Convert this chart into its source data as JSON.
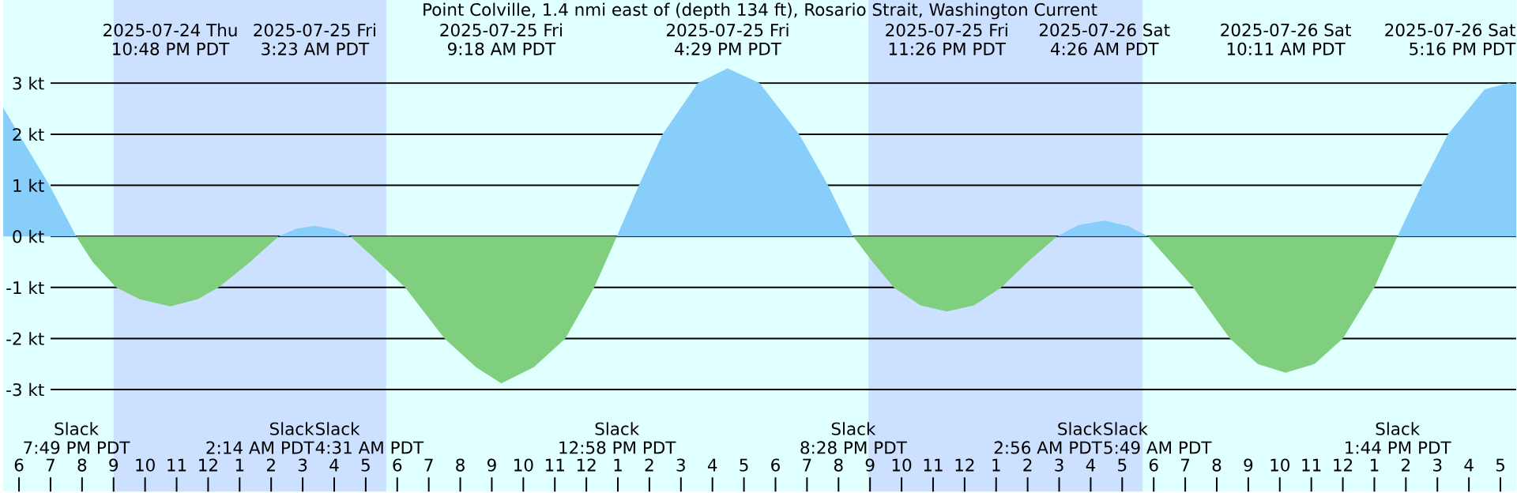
{
  "chart_data": {
    "type": "area",
    "title": "Point Colville, 1.4 nmi east of (depth 134 ft), Rosario Strait, Washington Current",
    "xlim": [
      "2025-07-24T17:30",
      "2025-07-26T17:30"
    ],
    "ylim": [
      -5.0,
      4.63
    ],
    "xticks": [
      {
        "value": "2025-07-24T18:00",
        "label": "6"
      },
      {
        "value": "2025-07-24T19:00",
        "label": "7"
      },
      {
        "value": "2025-07-24T20:00",
        "label": "8"
      },
      {
        "value": "2025-07-24T21:00",
        "label": "9"
      },
      {
        "value": "2025-07-24T22:00",
        "label": "10"
      },
      {
        "value": "2025-07-24T23:00",
        "label": "11"
      },
      {
        "value": "2025-07-25T00:00",
        "label": "12"
      },
      {
        "value": "2025-07-25T01:00",
        "label": "1"
      },
      {
        "value": "2025-07-25T02:00",
        "label": "2"
      },
      {
        "value": "2025-07-25T03:00",
        "label": "3"
      },
      {
        "value": "2025-07-25T04:00",
        "label": "4"
      },
      {
        "value": "2025-07-25T05:00",
        "label": "5"
      },
      {
        "value": "2025-07-25T06:00",
        "label": "6"
      },
      {
        "value": "2025-07-25T07:00",
        "label": "7"
      },
      {
        "value": "2025-07-25T08:00",
        "label": "8"
      },
      {
        "value": "2025-07-25T09:00",
        "label": "9"
      },
      {
        "value": "2025-07-25T10:00",
        "label": "10"
      },
      {
        "value": "2025-07-25T11:00",
        "label": "11"
      },
      {
        "value": "2025-07-25T12:00",
        "label": "12"
      },
      {
        "value": "2025-07-25T13:00",
        "label": "1"
      },
      {
        "value": "2025-07-25T14:00",
        "label": "2"
      },
      {
        "value": "2025-07-25T15:00",
        "label": "3"
      },
      {
        "value": "2025-07-25T16:00",
        "label": "4"
      },
      {
        "value": "2025-07-25T17:00",
        "label": "5"
      },
      {
        "value": "2025-07-25T18:00",
        "label": "6"
      },
      {
        "value": "2025-07-25T19:00",
        "label": "7"
      },
      {
        "value": "2025-07-25T20:00",
        "label": "8"
      },
      {
        "value": "2025-07-25T21:00",
        "label": "9"
      },
      {
        "value": "2025-07-25T22:00",
        "label": "10"
      },
      {
        "value": "2025-07-25T23:00",
        "label": "11"
      },
      {
        "value": "2025-07-26T00:00",
        "label": "12"
      },
      {
        "value": "2025-07-26T01:00",
        "label": "1"
      },
      {
        "value": "2025-07-26T02:00",
        "label": "2"
      },
      {
        "value": "2025-07-26T03:00",
        "label": "3"
      },
      {
        "value": "2025-07-26T04:00",
        "label": "4"
      },
      {
        "value": "2025-07-26T05:00",
        "label": "5"
      },
      {
        "value": "2025-07-26T06:00",
        "label": "6"
      },
      {
        "value": "2025-07-26T07:00",
        "label": "7"
      },
      {
        "value": "2025-07-26T08:00",
        "label": "8"
      },
      {
        "value": "2025-07-26T09:00",
        "label": "9"
      },
      {
        "value": "2025-07-26T10:00",
        "label": "10"
      },
      {
        "value": "2025-07-26T11:00",
        "label": "11"
      },
      {
        "value": "2025-07-26T12:00",
        "label": "12"
      },
      {
        "value": "2025-07-26T13:00",
        "label": "1"
      },
      {
        "value": "2025-07-26T14:00",
        "label": "2"
      },
      {
        "value": "2025-07-26T15:00",
        "label": "3"
      },
      {
        "value": "2025-07-26T16:00",
        "label": "4"
      },
      {
        "value": "2025-07-26T17:00",
        "label": "5"
      }
    ],
    "yticks": [
      {
        "value": 3,
        "label": "3 kt"
      },
      {
        "value": 2,
        "label": "2 kt"
      },
      {
        "value": 1,
        "label": "1 kt"
      },
      {
        "value": 0,
        "label": "0 kt"
      },
      {
        "value": -1,
        "label": "-1 kt"
      },
      {
        "value": -2,
        "label": "-2 kt"
      },
      {
        "value": -3,
        "label": "-3 kt"
      }
    ],
    "grid": "y",
    "bands": [
      {
        "axis": "x",
        "from": "2025-07-24T21:00",
        "to": "2025-07-25T05:39",
        "color": "#cce0ff"
      },
      {
        "axis": "x",
        "from": "2025-07-25T20:57",
        "to": "2025-07-26T05:39",
        "color": "#cce0ff"
      }
    ],
    "series": [
      {
        "color": "#87cefa",
        "x": [
          "2025-07-24T17:30",
          "2025-07-24T18:00",
          "2025-07-24T18:58",
          "2025-07-24T19:49",
          "2025-07-24T23:00",
          "2025-07-25T02:14",
          "2025-07-25T02:48",
          "2025-07-25T03:23",
          "2025-07-25T04:00",
          "2025-07-25T04:31",
          "2025-07-25T09:00",
          "2025-07-25T12:58",
          "2025-07-25T13:40",
          "2025-07-25T14:25",
          "2025-07-25T15:32",
          "2025-07-25T16:29",
          "2025-07-25T17:30",
          "2025-07-25T18:45",
          "2025-07-25T19:40",
          "2025-07-25T20:28",
          "2025-07-25T23:00",
          "2025-07-26T02:56",
          "2025-07-26T03:36",
          "2025-07-26T04:26",
          "2025-07-26T05:12",
          "2025-07-26T05:49",
          "2025-07-26T10:00",
          "2025-07-26T13:44",
          "2025-07-26T14:30",
          "2025-07-26T15:20",
          "2025-07-26T16:30",
          "2025-07-26T17:16",
          "2025-07-26T17:30"
        ],
        "values": [
          2.52,
          2.0,
          1.0,
          0,
          null,
          0,
          0.15,
          0.21,
          0.14,
          0,
          null,
          0,
          1.0,
          2.0,
          3.0,
          3.29,
          3.0,
          2.0,
          1.0,
          0,
          null,
          0,
          0.22,
          0.31,
          0.2,
          0,
          null,
          0,
          1.0,
          2.0,
          2.88,
          3.0,
          2.97
        ]
      },
      {
        "color": "#7fcf7f",
        "x": [
          "2025-07-24T19:49",
          "2025-07-24T20:20",
          "2025-07-24T21:05",
          "2025-07-24T21:50",
          "2025-07-24T22:48",
          "2025-07-24T23:40",
          "2025-07-25T00:20",
          "2025-07-25T01:20",
          "2025-07-25T02:14",
          "2025-07-25T03:24",
          "2025-07-25T04:31",
          "2025-07-25T05:24",
          "2025-07-25T06:15",
          "2025-07-25T07:30",
          "2025-07-25T08:30",
          "2025-07-25T09:18",
          "2025-07-25T10:20",
          "2025-07-25T11:20",
          "2025-07-25T12:15",
          "2025-07-25T12:58",
          "2025-07-25T16:00",
          "2025-07-25T20:28",
          "2025-07-25T21:05",
          "2025-07-25T21:45",
          "2025-07-25T22:36",
          "2025-07-25T23:26",
          "2025-07-26T00:18",
          "2025-07-26T01:10",
          "2025-07-26T02:00",
          "2025-07-26T02:56",
          "2025-07-26T04:24",
          "2025-07-26T05:49",
          "2025-07-26T07:15",
          "2025-07-26T08:25",
          "2025-07-26T09:18",
          "2025-07-26T10:11",
          "2025-07-26T11:06",
          "2025-07-26T12:00",
          "2025-07-26T13:00",
          "2025-07-26T13:44"
        ],
        "values": [
          0,
          -0.5,
          -1.0,
          -1.23,
          -1.37,
          -1.23,
          -1.0,
          -0.5,
          0,
          null,
          0,
          -0.5,
          -1.0,
          -2.0,
          -2.56,
          -2.88,
          -2.56,
          -2.0,
          -1.0,
          0,
          null,
          0,
          -0.5,
          -1.0,
          -1.35,
          -1.47,
          -1.35,
          -1.0,
          -0.5,
          0,
          null,
          0,
          -1.0,
          -2.0,
          -2.5,
          -2.67,
          -2.5,
          -2.0,
          -1.0,
          0
        ]
      }
    ],
    "annotations": [
      "2025-07-24 Thu",
      "10:48 PM PDT",
      "2025-07-25 Fri",
      "3:23 AM PDT",
      "2025-07-25 Fri",
      "9:18 AM PDT",
      "2025-07-25 Fri",
      "4:29 PM PDT",
      "2025-07-25 Fri",
      "11:26 PM PDT",
      "2025-07-26 Sat",
      "4:26 AM PDT",
      "2025-07-26 Sat",
      "10:11 AM PDT",
      "2025-07-26 Sat",
      "5:16 PM PDT",
      "Slack",
      "7:49 PM PDT",
      "Slack",
      "2:14 AM PDT",
      "Slack",
      "4:31 AM PDT",
      "Slack",
      "12:58 PM PDT",
      "Slack",
      "8:28 PM PDT",
      "Slack",
      "2:56 AM PDT",
      "Slack",
      "5:49 AM PDT",
      "Slack",
      "1:44 PM PDT"
    ]
  }
}
